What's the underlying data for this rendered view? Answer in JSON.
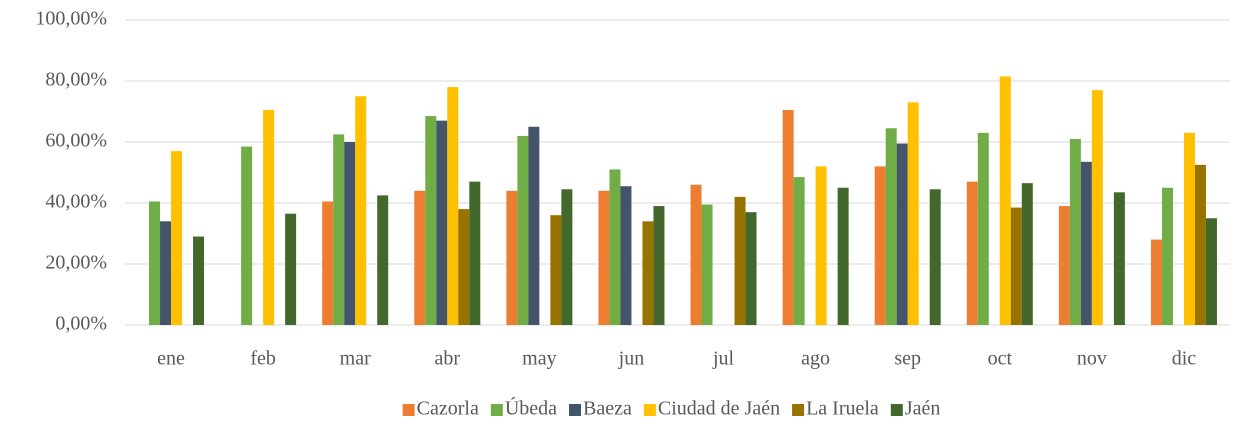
{
  "chart_data": {
    "type": "bar",
    "categories": [
      "ene",
      "feb",
      "mar",
      "abr",
      "may",
      "jun",
      "jul",
      "ago",
      "sep",
      "oct",
      "nov",
      "dic"
    ],
    "series": [
      {
        "name": "Cazorla",
        "color": "#ed7d31",
        "values": [
          null,
          null,
          40.5,
          44,
          44,
          44,
          46,
          70.5,
          52,
          47,
          39,
          28
        ]
      },
      {
        "name": "Úbeda",
        "color": "#70ad47",
        "values": [
          40.5,
          58.5,
          62.5,
          68.5,
          62,
          51,
          39.5,
          48.5,
          64.5,
          63,
          61,
          45
        ]
      },
      {
        "name": "Baeza",
        "color": "#44546a",
        "values": [
          34,
          null,
          60,
          67,
          65,
          45.5,
          null,
          null,
          59.5,
          null,
          53.5,
          null
        ]
      },
      {
        "name": "Ciudad de Jaén",
        "color": "#ffc000",
        "values": [
          57,
          70.5,
          75,
          78,
          null,
          null,
          null,
          52,
          73,
          81.5,
          77,
          63
        ]
      },
      {
        "name": "La Iruela",
        "color": "#997300",
        "values": [
          null,
          null,
          null,
          38,
          36,
          34,
          42,
          null,
          null,
          38.5,
          null,
          52.5
        ]
      },
      {
        "name": "Jaén",
        "color": "#43682b",
        "values": [
          29,
          36.5,
          42.5,
          47,
          44.5,
          39,
          37,
          45,
          44.5,
          46.5,
          43.5,
          35
        ]
      }
    ],
    "ylim": [
      0,
      100
    ],
    "yticks": [
      {
        "value": 0,
        "label": "0,00%"
      },
      {
        "value": 20,
        "label": "20,00%"
      },
      {
        "value": 40,
        "label": "40,00%"
      },
      {
        "value": 60,
        "label": "60,00%"
      },
      {
        "value": 80,
        "label": "80,00%"
      },
      {
        "value": 100,
        "label": "100,00%"
      }
    ],
    "grid": true,
    "legend": "bottom"
  }
}
